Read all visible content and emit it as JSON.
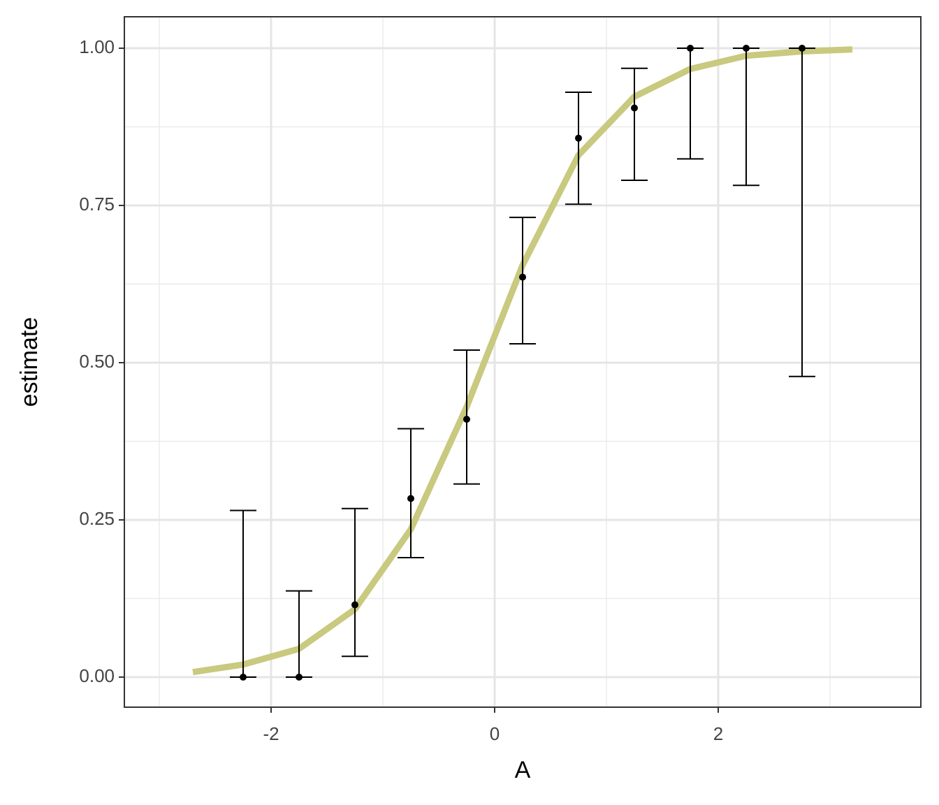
{
  "chart_data": {
    "type": "errorbar",
    "x_label": "A",
    "y_label": "estimate",
    "xlim": [
      -3.3125,
      3.8125
    ],
    "ylim": [
      -0.0478,
      1.05
    ],
    "xticks": [
      -2,
      0,
      2
    ],
    "yticks": [
      {
        "value": 0,
        "label": "0.00"
      },
      0.25,
      {
        "value": 0.5,
        "label": "0.50"
      },
      0.75,
      {
        "value": 1,
        "label": "1.00"
      }
    ],
    "minor_xticks": [
      -3,
      -1,
      1,
      3
    ],
    "minor_yticks": [
      0.125,
      0.375,
      0.625,
      0.875
    ],
    "grid": true,
    "points": {
      "color": "#000000",
      "x": [
        -2.25,
        -1.75,
        -1.25,
        -0.75,
        -0.25,
        0.25,
        0.75,
        1.25,
        1.75,
        2.25,
        2.75
      ],
      "values": [
        0,
        0,
        0.115,
        0.284,
        0.41,
        0.636,
        0.857,
        0.905,
        1,
        1,
        1
      ],
      "lower": [
        0,
        0,
        0.033,
        0.19,
        0.307,
        0.53,
        0.752,
        0.79,
        0.824,
        0.782,
        0.478
      ],
      "upper": [
        0.265,
        0.137,
        0.268,
        0.395,
        0.52,
        0.731,
        0.93,
        0.968,
        1,
        1,
        1
      ]
    },
    "fit": {
      "color": "#c9c97f",
      "x": [
        -2.7,
        -2.25,
        -1.75,
        -1.25,
        -0.75,
        -0.25,
        0.25,
        0.75,
        1.25,
        1.75,
        2.25,
        2.75,
        3.2
      ],
      "values": [
        0.008,
        0.02,
        0.045,
        0.108,
        0.235,
        0.43,
        0.655,
        0.83,
        0.923,
        0.967,
        0.988,
        0.995,
        0.998
      ]
    }
  }
}
